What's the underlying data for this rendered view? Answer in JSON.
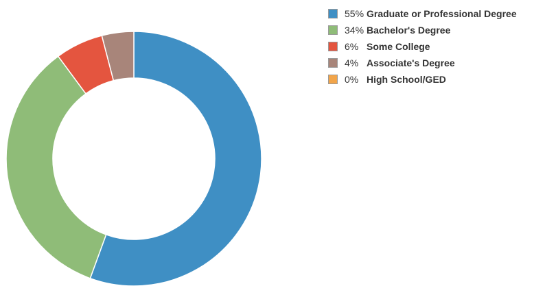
{
  "chart_data": {
    "type": "pie",
    "donut": true,
    "title": "",
    "categories": [
      "Graduate or Professional Degree",
      "Bachelor's Degree",
      "Some College",
      "Associate's Degree",
      "High School/GED"
    ],
    "values": [
      55,
      34,
      6,
      4,
      0
    ],
    "value_labels": [
      "55%",
      "34%",
      "6%",
      "4%",
      "0%"
    ],
    "colors": [
      "#3f8fc4",
      "#8fbc78",
      "#e4553f",
      "#a8857a",
      "#f2a54a"
    ],
    "legend_position": "top-right"
  }
}
